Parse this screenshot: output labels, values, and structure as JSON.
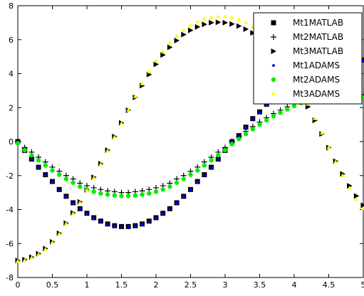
{
  "chart_data": {
    "type": "scatter",
    "title": "",
    "xlabel": "",
    "ylabel": "",
    "xlim": [
      0,
      5
    ],
    "ylim": [
      -8,
      8
    ],
    "xticks": [
      0,
      0.5,
      1,
      1.5,
      2,
      2.5,
      3,
      3.5,
      4,
      4.5,
      5
    ],
    "xtick_labels": [
      "0",
      "0.5",
      "1",
      "1.5",
      "2",
      "2.5",
      "3",
      "3.5",
      "4",
      "4.5",
      "5"
    ],
    "yticks": [
      -8,
      -6,
      -4,
      -2,
      0,
      2,
      4,
      6,
      8
    ],
    "ytick_labels": [
      "-8",
      "-6",
      "-4",
      "-2",
      "0",
      "2",
      "4",
      "6",
      "8"
    ],
    "grid": false,
    "legend_position": "top-right",
    "x": [
      0,
      0.1,
      0.2,
      0.3,
      0.4,
      0.5,
      0.6,
      0.7,
      0.8,
      0.9,
      1.0,
      1.1,
      1.2,
      1.3,
      1.4,
      1.5,
      1.6,
      1.7,
      1.8,
      1.9,
      2.0,
      2.1,
      2.2,
      2.3,
      2.4,
      2.5,
      2.6,
      2.7,
      2.8,
      2.9,
      3.0,
      3.1,
      3.2,
      3.3,
      3.4,
      3.5,
      3.6,
      3.7,
      3.8,
      3.9,
      4.0,
      4.1,
      4.2,
      4.3,
      4.4,
      4.5,
      4.6,
      4.7,
      4.8,
      4.9,
      5.0
    ],
    "series": [
      {
        "name": "Mt1MATLAB",
        "marker": "square",
        "color": "#000000",
        "values": [
          0,
          -0.52,
          -1.03,
          -1.51,
          -1.95,
          -2.35,
          -2.82,
          -3.22,
          -3.6,
          -3.95,
          -4.22,
          -4.48,
          -4.68,
          -4.85,
          -4.95,
          -5.0,
          -5.0,
          -4.95,
          -4.85,
          -4.68,
          -4.48,
          -4.22,
          -3.95,
          -3.6,
          -3.22,
          -2.82,
          -2.35,
          -1.95,
          -1.51,
          -1.03,
          -0.52,
          0,
          0.35,
          0.85,
          1.35,
          1.75,
          2.2,
          2.55,
          2.9,
          3.2,
          3.45,
          3.7,
          3.95,
          4.15,
          4.3,
          4.45,
          4.6,
          4.7,
          4.75,
          4.78,
          4.8
        ]
      },
      {
        "name": "Mt2MATLAB",
        "marker": "plus",
        "color": "#000000",
        "values": [
          0,
          -0.35,
          -0.62,
          -0.92,
          -1.2,
          -1.5,
          -1.75,
          -2.0,
          -2.2,
          -2.45,
          -2.6,
          -2.72,
          -2.82,
          -2.9,
          -2.95,
          -3.0,
          -3.0,
          -2.95,
          -2.9,
          -2.82,
          -2.72,
          -2.6,
          -2.45,
          -2.2,
          -2.0,
          -1.75,
          -1.5,
          -1.2,
          -0.92,
          -0.62,
          -0.35,
          0,
          0.3,
          0.6,
          0.88,
          1.15,
          1.4,
          1.65,
          1.85,
          2.05,
          2.25,
          2.42,
          2.55,
          2.65,
          2.72,
          2.76,
          2.78,
          2.78,
          2.77,
          2.76,
          2.75
        ]
      },
      {
        "name": "Mt3MATLAB",
        "marker": "triangle-right",
        "color": "#000000",
        "values": [
          -7.0,
          -6.95,
          -6.8,
          -6.6,
          -6.3,
          -5.9,
          -5.4,
          -4.8,
          -4.2,
          -3.55,
          -2.85,
          -2.1,
          -1.3,
          -0.5,
          0.3,
          1.1,
          1.85,
          2.6,
          3.3,
          3.95,
          4.55,
          5.1,
          5.55,
          5.95,
          6.3,
          6.55,
          6.75,
          6.9,
          7.0,
          7.02,
          7.0,
          6.92,
          6.8,
          6.62,
          6.4,
          6.1,
          5.7,
          5.25,
          4.75,
          4.15,
          3.5,
          2.8,
          2.05,
          1.25,
          0.45,
          -0.35,
          -1.15,
          -1.9,
          -2.6,
          -3.2,
          -3.75
        ]
      },
      {
        "name": "Mt1ADAMS",
        "marker": "diamond",
        "color": "#0000ff",
        "values": [
          0,
          -0.55,
          -1.06,
          -1.54,
          -1.98,
          -2.38,
          -2.85,
          -3.25,
          -3.63,
          -3.98,
          -4.25,
          -4.51,
          -4.71,
          -4.88,
          -4.98,
          -5.03,
          -5.03,
          -4.98,
          -4.88,
          -4.71,
          -4.51,
          -4.25,
          -3.98,
          -3.63,
          -3.25,
          -2.85,
          -2.38,
          -1.98,
          -1.54,
          -1.06,
          -0.55,
          -0.03,
          0.32,
          0.82,
          1.32,
          1.72,
          2.17,
          2.52,
          2.87,
          3.17,
          3.42,
          3.67,
          3.92,
          4.12,
          4.27,
          4.42,
          4.57,
          4.67,
          4.72,
          4.75,
          4.77
        ]
      },
      {
        "name": "Mt2ADAMS",
        "marker": "circle",
        "color": "#00ee00",
        "values": [
          -0.1,
          -0.5,
          -0.8,
          -1.1,
          -1.4,
          -1.7,
          -1.95,
          -2.2,
          -2.42,
          -2.65,
          -2.82,
          -2.95,
          -3.05,
          -3.12,
          -3.17,
          -3.2,
          -3.2,
          -3.17,
          -3.12,
          -3.05,
          -2.95,
          -2.82,
          -2.65,
          -2.42,
          -2.2,
          -1.95,
          -1.7,
          -1.4,
          -1.1,
          -0.8,
          -0.5,
          -0.15,
          0.15,
          0.45,
          0.73,
          1.0,
          1.25,
          1.5,
          1.7,
          1.9,
          2.1,
          2.27,
          2.4,
          2.5,
          2.57,
          2.61,
          2.63,
          2.63,
          2.62,
          2.61,
          2.6
        ]
      },
      {
        "name": "Mt3ADAMS",
        "marker": "triangle-up",
        "color": "#ffff00",
        "values": [
          -7.05,
          -7.0,
          -6.85,
          -6.65,
          -6.35,
          -5.95,
          -5.45,
          -4.85,
          -4.25,
          -3.6,
          -2.9,
          -2.15,
          -1.35,
          -0.55,
          0.25,
          1.05,
          1.85,
          2.65,
          3.4,
          4.1,
          4.75,
          5.3,
          5.8,
          6.2,
          6.55,
          6.85,
          7.05,
          7.2,
          7.3,
          7.35,
          7.35,
          7.3,
          7.18,
          7.0,
          6.75,
          6.45,
          6.05,
          5.6,
          5.05,
          4.45,
          3.75,
          3.0,
          2.2,
          1.35,
          0.5,
          -0.35,
          -1.2,
          -2.0,
          -2.75,
          -3.4,
          -3.95
        ]
      }
    ]
  }
}
